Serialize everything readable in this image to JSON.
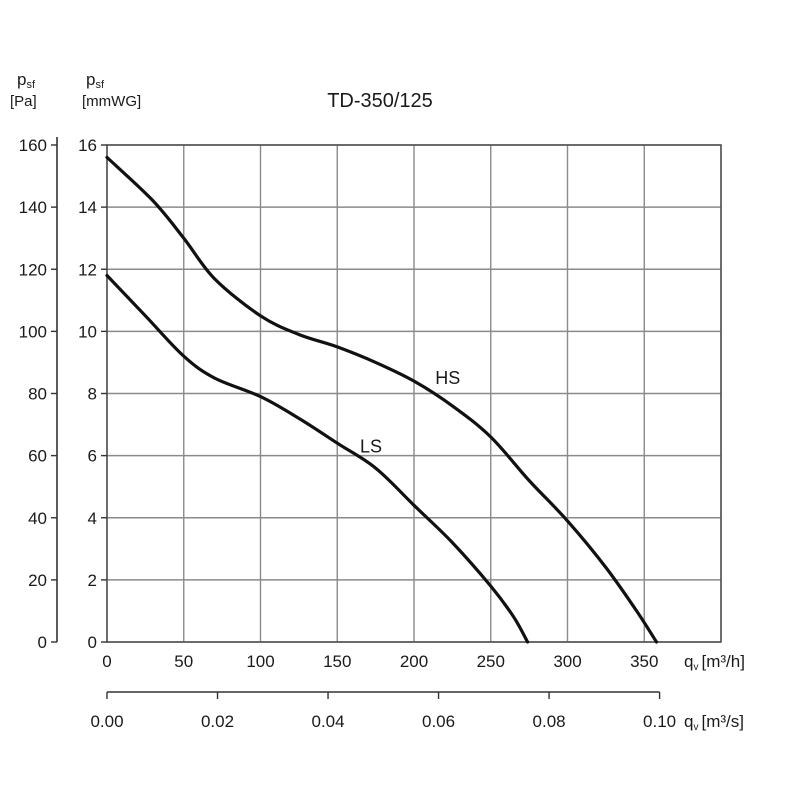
{
  "chart_data": {
    "type": "line",
    "title": "TD-350/125",
    "x_axis": {
      "label_symbol": "q",
      "label_sub": "v",
      "unit": "[m³/h]",
      "range": [
        0,
        400
      ],
      "ticks": [
        0,
        50,
        100,
        150,
        200,
        250,
        300,
        350
      ],
      "grid_step": 50
    },
    "x2_axis": {
      "label_symbol": "q",
      "label_sub": "v",
      "unit": "[m³/s]",
      "ticks": [
        "0.00",
        "0.02",
        "0.04",
        "0.06",
        "0.08",
        "0.10"
      ],
      "tick_values_m3h": [
        0,
        72,
        144,
        216,
        288,
        360
      ]
    },
    "y_axis": {
      "label_symbol": "p",
      "label_sub": "sf",
      "unit": "[mmWG]",
      "range": [
        0,
        16
      ],
      "ticks": [
        0,
        2,
        4,
        6,
        8,
        10,
        12,
        14,
        16
      ]
    },
    "y2_axis": {
      "label_symbol": "p",
      "label_sub": "sf",
      "unit": "[Pa]",
      "ticks": [
        0,
        20,
        40,
        60,
        80,
        100,
        120,
        140,
        160
      ]
    },
    "grid": true,
    "series": [
      {
        "name": "HS",
        "x": [
          0,
          30,
          50,
          70,
          100,
          125,
          150,
          175,
          200,
          225,
          250,
          275,
          300,
          325,
          345,
          358
        ],
        "y": [
          15.6,
          14.2,
          13.0,
          11.7,
          10.5,
          9.9,
          9.5,
          9.0,
          8.4,
          7.6,
          6.6,
          5.2,
          3.9,
          2.4,
          1.0,
          0
        ]
      },
      {
        "name": "LS",
        "x": [
          0,
          25,
          50,
          70,
          100,
          125,
          150,
          175,
          200,
          225,
          250,
          265,
          274
        ],
        "y": [
          11.8,
          10.5,
          9.2,
          8.5,
          7.9,
          7.2,
          6.4,
          5.6,
          4.4,
          3.2,
          1.8,
          0.8,
          0
        ]
      }
    ]
  }
}
